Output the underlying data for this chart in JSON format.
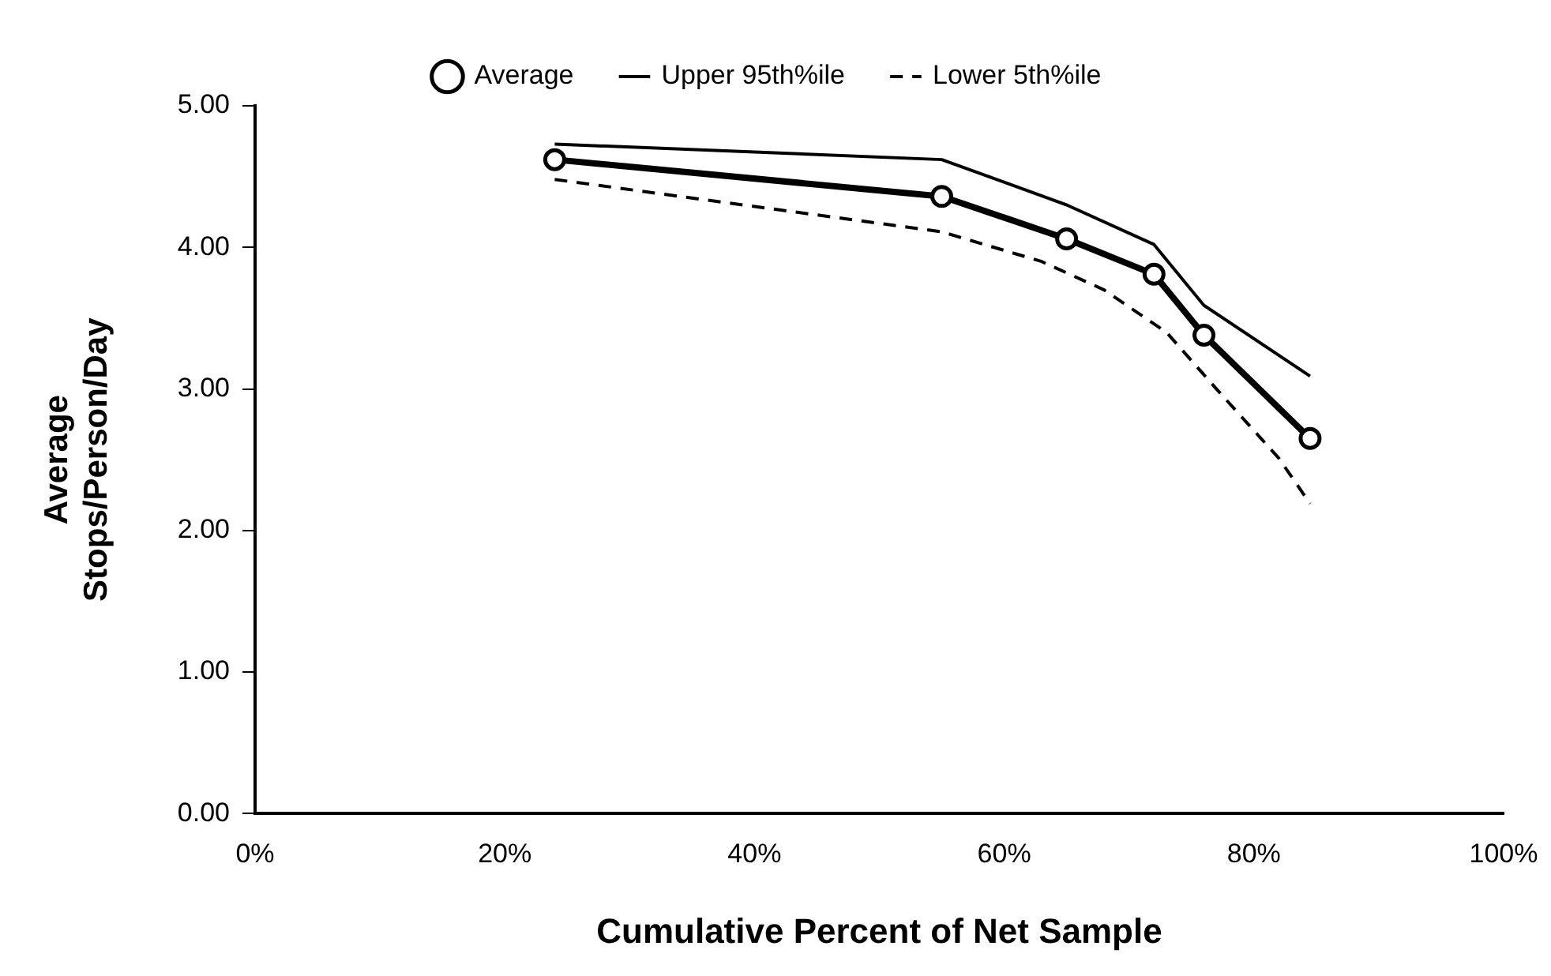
{
  "chart_data": {
    "type": "line",
    "xlabel": "Cumulative Percent of Net Sample",
    "ylabel": "Average\nStops/Person/Day",
    "xlim": [
      0,
      100
    ],
    "xticks": [
      {
        "value": 0,
        "label": "0%"
      },
      {
        "value": 20,
        "label": "20%"
      },
      {
        "value": 40,
        "label": "40%"
      },
      {
        "value": 60,
        "label": "60%"
      },
      {
        "value": 80,
        "label": "80%"
      },
      {
        "value": 100,
        "label": "100%"
      }
    ],
    "ylim": [
      0,
      5
    ],
    "yticks": [
      {
        "value": 0,
        "label": "0.00"
      },
      {
        "value": 1,
        "label": "1.00"
      },
      {
        "value": 2,
        "label": "2.00"
      },
      {
        "value": 3,
        "label": "3.00"
      },
      {
        "value": 4,
        "label": "4.00"
      },
      {
        "value": 5,
        "label": "5.00"
      }
    ],
    "grid": false,
    "legend": "top",
    "series": [
      {
        "name": "Average",
        "color": "#000000",
        "marker": "circle",
        "line_style": "solid",
        "x": [
          24,
          55,
          65,
          72,
          76,
          84.5
        ],
        "values": [
          4.62,
          4.36,
          4.06,
          3.81,
          3.38,
          2.65
        ]
      },
      {
        "name": "Upper 95th%ile",
        "color": "#000000",
        "marker": "none",
        "line_style": "solid",
        "x": [
          24,
          55,
          65,
          72,
          76,
          84.5
        ],
        "values": [
          4.73,
          4.62,
          4.3,
          4.02,
          3.59,
          3.09
        ]
      },
      {
        "name": "Lower 5th%ile",
        "color": "#000000",
        "marker": "none",
        "line_style": "dashed",
        "x": [
          24,
          55,
          63,
          68,
          73,
          77,
          82,
          84.5
        ],
        "values": [
          4.48,
          4.11,
          3.9,
          3.7,
          3.4,
          3.0,
          2.51,
          2.19
        ]
      }
    ]
  }
}
